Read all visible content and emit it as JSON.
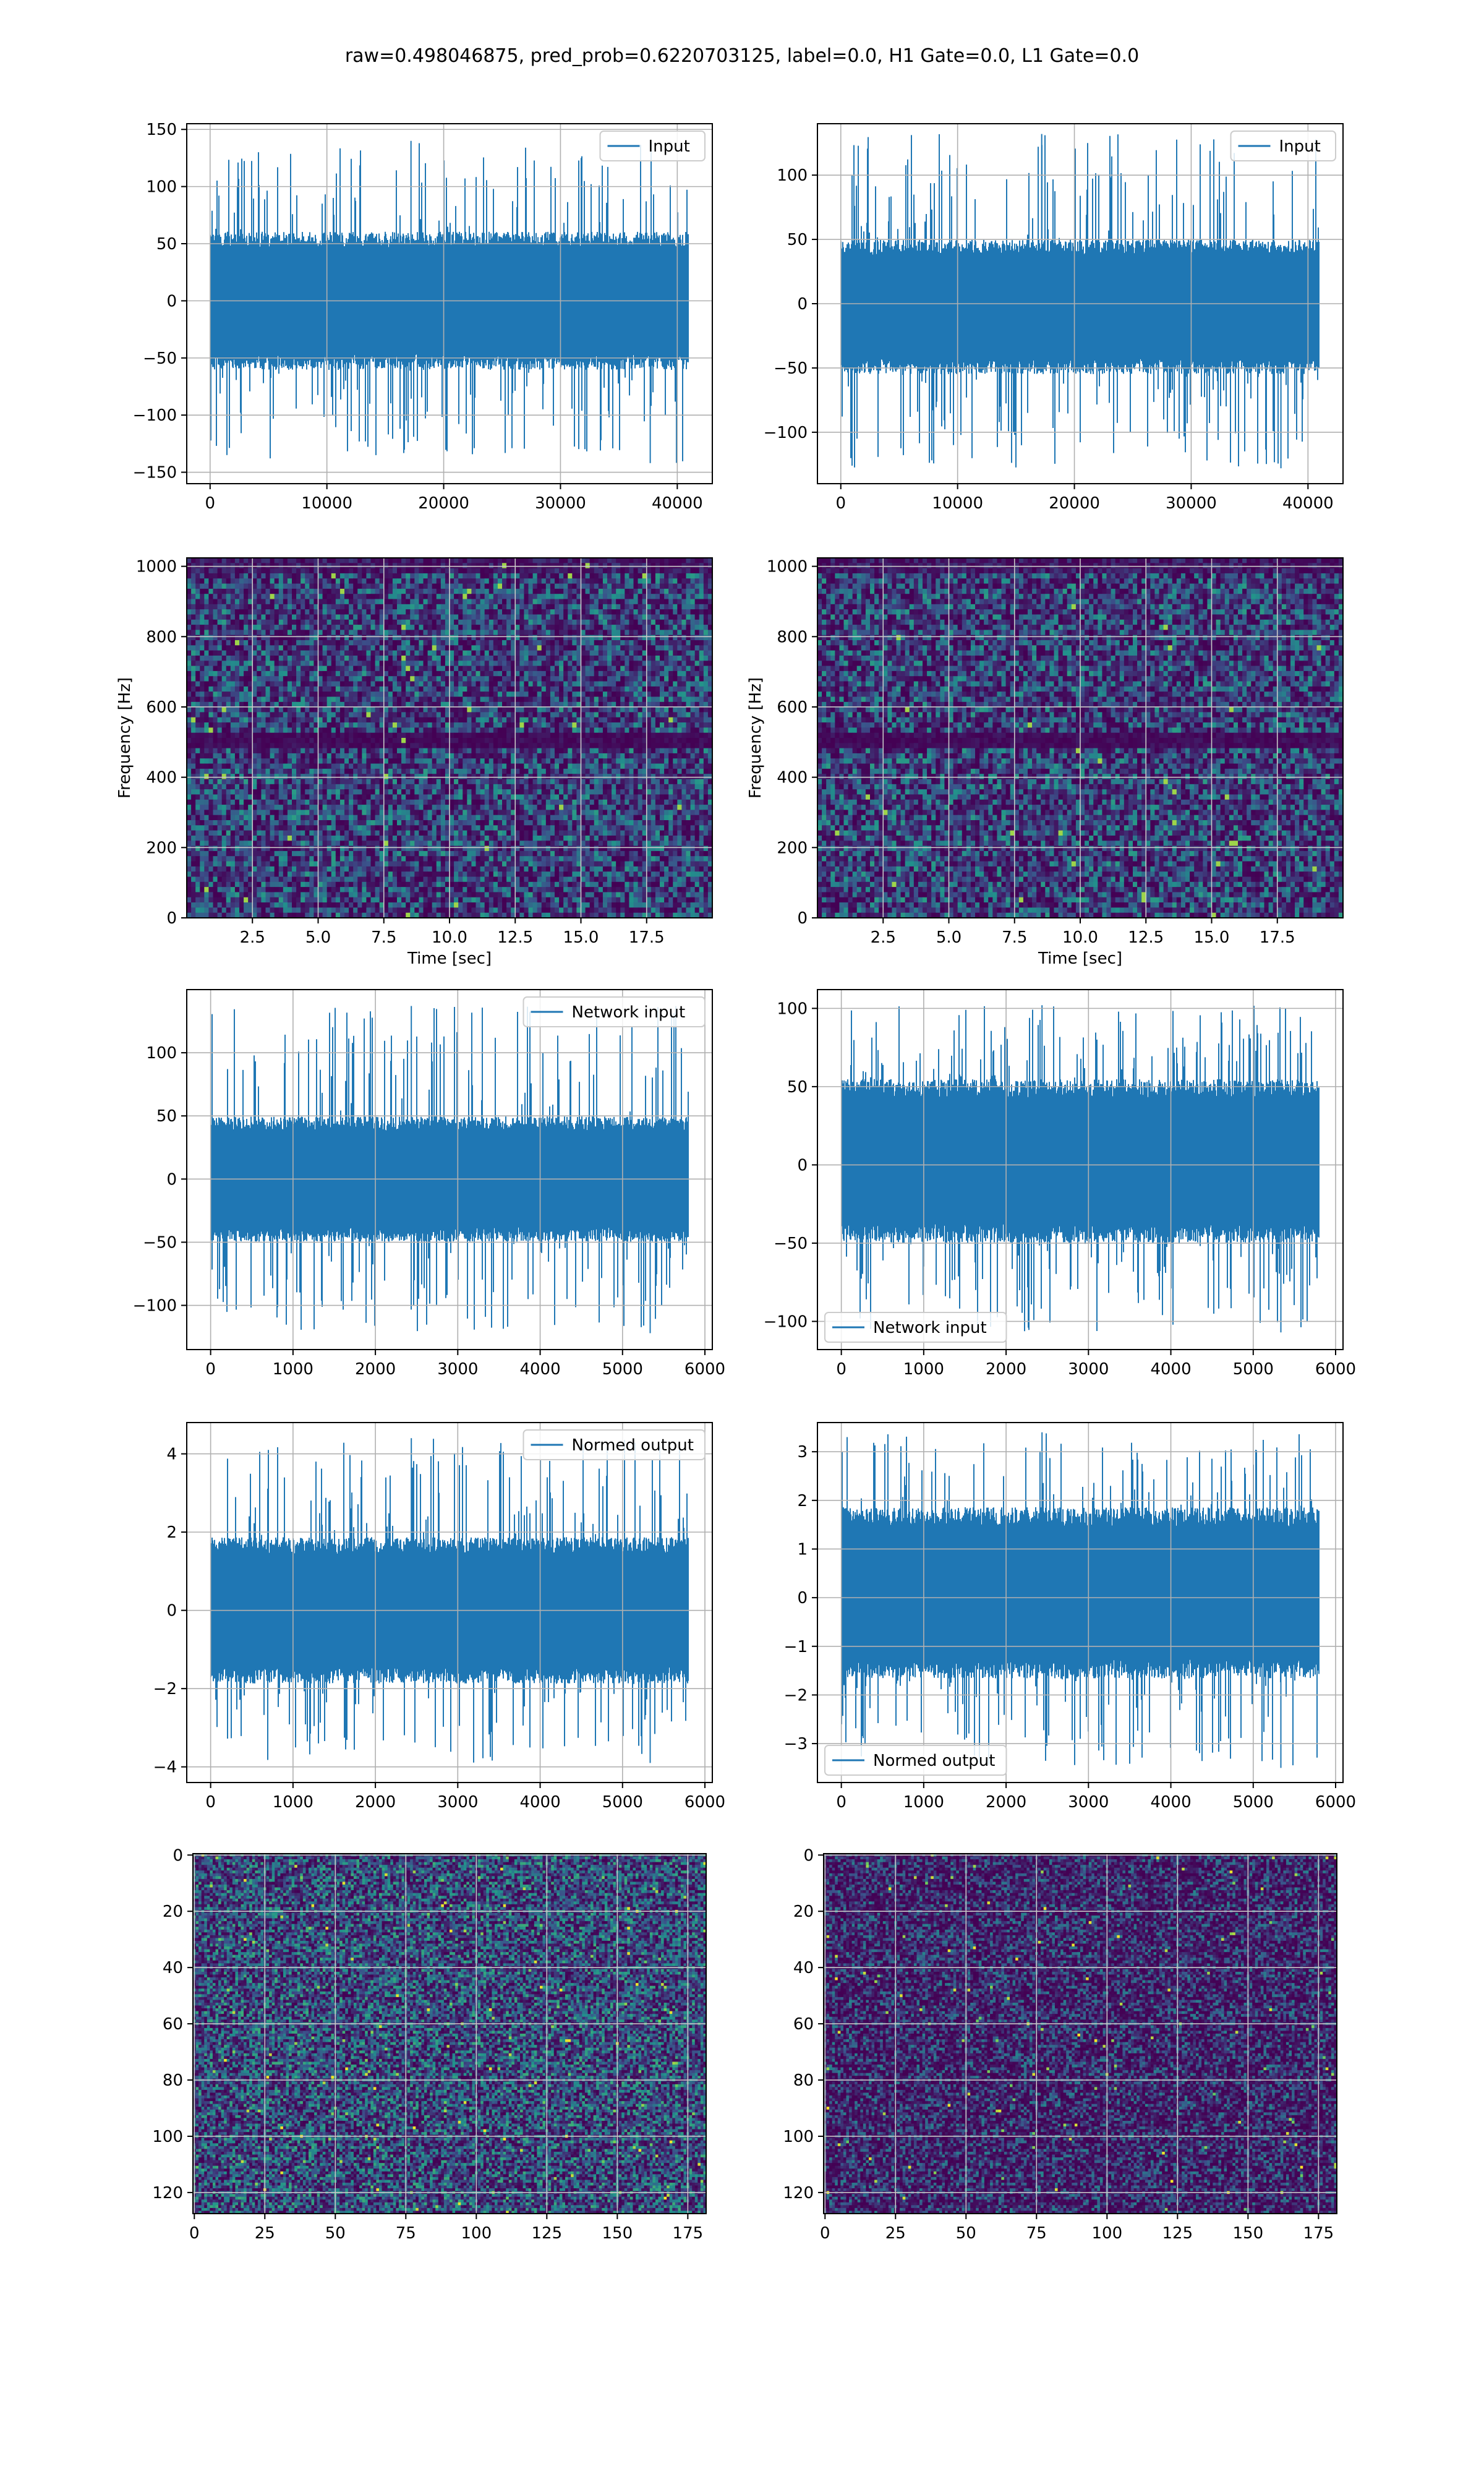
{
  "figure": {
    "suptitle": "raw=0.498046875, pred_prob=0.6220703125, label=0.0, H1 Gate=0.0, L1 Gate=0.0"
  },
  "colors": {
    "line": "#1f77b4",
    "grid": "#b0b0b0",
    "axes": "#000000",
    "viridis_dark": "#440154",
    "viridis_blue": "#3b528b",
    "viridis_teal": "#21918c",
    "viridis_green": "#5ec962",
    "viridis_yellow": "#fde725"
  },
  "chart_data": [
    {
      "id": "input-left",
      "type": "line",
      "legend": "Input",
      "legend_loc": "upper right",
      "xlim": [
        -2000,
        43000
      ],
      "ylim": [
        -160,
        155
      ],
      "xticks": [
        0,
        10000,
        20000,
        30000,
        40000
      ],
      "yticks": [
        -150,
        -100,
        -50,
        0,
        50,
        100,
        150
      ],
      "series": [
        {
          "name": "Input",
          "n_samples": 40960,
          "x_range": [
            0,
            40960
          ],
          "core_band": [
            -55,
            55
          ],
          "max": 140,
          "min": -142
        }
      ],
      "grid": true
    },
    {
      "id": "input-right",
      "type": "line",
      "legend": "Input",
      "legend_loc": "upper right",
      "xlim": [
        -2000,
        43000
      ],
      "ylim": [
        -140,
        140
      ],
      "xticks": [
        0,
        10000,
        20000,
        30000,
        40000
      ],
      "yticks": [
        -100,
        -50,
        0,
        50,
        100
      ],
      "series": [
        {
          "name": "Input",
          "n_samples": 40960,
          "x_range": [
            0,
            40960
          ],
          "core_band": [
            -50,
            45
          ],
          "max": 132,
          "min": -128
        }
      ],
      "grid": true
    },
    {
      "id": "spectrogram-left",
      "type": "heatmap",
      "xlabel": "Time [sec]",
      "ylabel": "Frequency [Hz]",
      "xlim": [
        0,
        20
      ],
      "ylim": [
        0,
        1024
      ],
      "xticks": [
        2.5,
        5.0,
        7.5,
        10.0,
        12.5,
        15.0,
        17.5
      ],
      "xticklabels": [
        "2.5",
        "5.0",
        "7.5",
        "10.0",
        "12.5",
        "15.0",
        "17.5"
      ],
      "yticks": [
        0,
        200,
        400,
        600,
        800,
        1000
      ],
      "colormap": "viridis",
      "dark_band_hz": 500,
      "grid": true
    },
    {
      "id": "spectrogram-right",
      "type": "heatmap",
      "xlabel": "Time [sec]",
      "ylabel": "Frequency [Hz]",
      "xlim": [
        0,
        20
      ],
      "ylim": [
        0,
        1024
      ],
      "xticks": [
        2.5,
        5.0,
        7.5,
        10.0,
        12.5,
        15.0,
        17.5
      ],
      "xticklabels": [
        "2.5",
        "5.0",
        "7.5",
        "10.0",
        "12.5",
        "15.0",
        "17.5"
      ],
      "yticks": [
        0,
        200,
        400,
        600,
        800,
        1000
      ],
      "colormap": "viridis",
      "dark_band_hz": 500,
      "grid": true
    },
    {
      "id": "network-input-left",
      "type": "line",
      "legend": "Network input",
      "legend_loc": "upper right",
      "xlim": [
        -290,
        6090
      ],
      "ylim": [
        -135,
        150
      ],
      "xticks": [
        0,
        1000,
        2000,
        3000,
        4000,
        5000,
        6000
      ],
      "yticks": [
        -100,
        -50,
        0,
        50,
        100
      ],
      "series": [
        {
          "name": "Network input",
          "n_samples": 5800,
          "x_range": [
            0,
            5800
          ],
          "core_band": [
            -45,
            45
          ],
          "max": 137,
          "min": -122
        }
      ],
      "grid": true
    },
    {
      "id": "network-input-right",
      "type": "line",
      "legend": "Network input",
      "legend_loc": "lower left",
      "xlim": [
        -290,
        6090
      ],
      "ylim": [
        -118,
        112
      ],
      "xticks": [
        0,
        1000,
        2000,
        3000,
        4000,
        5000,
        6000
      ],
      "yticks": [
        -100,
        -50,
        0,
        50,
        100
      ],
      "series": [
        {
          "name": "Network input",
          "n_samples": 5800,
          "x_range": [
            0,
            5800
          ],
          "core_band": [
            -45,
            50
          ],
          "max": 102,
          "min": -107
        }
      ],
      "grid": true
    },
    {
      "id": "normed-output-left",
      "type": "line",
      "legend": "Normed output",
      "legend_loc": "upper right",
      "xlim": [
        -290,
        6090
      ],
      "ylim": [
        -4.4,
        4.8
      ],
      "xticks": [
        0,
        1000,
        2000,
        3000,
        4000,
        5000,
        6000
      ],
      "yticks": [
        -4,
        -2,
        0,
        2,
        4
      ],
      "series": [
        {
          "name": "Normed output",
          "n_samples": 5800,
          "x_range": [
            0,
            5800
          ],
          "core_band": [
            -1.7,
            1.7
          ],
          "max": 4.4,
          "min": -3.9
        }
      ],
      "grid": true
    },
    {
      "id": "normed-output-right",
      "type": "line",
      "legend": "Normed output",
      "legend_loc": "lower left",
      "xlim": [
        -290,
        6090
      ],
      "ylim": [
        -3.8,
        3.6
      ],
      "xticks": [
        0,
        1000,
        2000,
        3000,
        4000,
        5000,
        6000
      ],
      "yticks": [
        -3,
        -2,
        -1,
        0,
        1,
        2,
        3
      ],
      "yticklabels": [
        "−3",
        "−2",
        "−1",
        "0",
        "1",
        "2",
        "3"
      ],
      "series": [
        {
          "name": "Normed output",
          "n_samples": 5800,
          "x_range": [
            0,
            5800
          ],
          "core_band": [
            -1.5,
            1.7
          ],
          "max": 3.4,
          "min": -3.5
        }
      ],
      "grid": true
    },
    {
      "id": "matrix-left",
      "type": "heatmap",
      "rows": 128,
      "cols": 182,
      "xlim": [
        -0.5,
        181.5
      ],
      "ylim": [
        127.5,
        -0.5
      ],
      "xticks": [
        0,
        25,
        50,
        75,
        100,
        125,
        150,
        175
      ],
      "yticks": [
        0,
        20,
        40,
        60,
        80,
        100,
        120
      ],
      "colormap": "viridis",
      "y_inverted": true,
      "grid": true
    },
    {
      "id": "matrix-right",
      "type": "heatmap",
      "rows": 128,
      "cols": 182,
      "xlim": [
        -0.5,
        181.5
      ],
      "ylim": [
        127.5,
        -0.5
      ],
      "xticks": [
        0,
        25,
        50,
        75,
        100,
        125,
        150,
        175
      ],
      "yticks": [
        0,
        20,
        40,
        60,
        80,
        100,
        120
      ],
      "colormap": "viridis",
      "y_inverted": true,
      "grid": true
    }
  ]
}
